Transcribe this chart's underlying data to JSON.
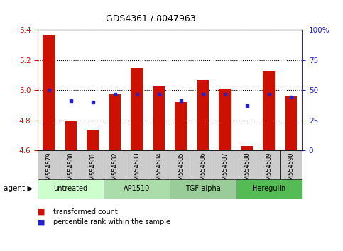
{
  "title": "GDS4361 / 8047963",
  "samples": [
    "GSM554579",
    "GSM554580",
    "GSM554581",
    "GSM554582",
    "GSM554583",
    "GSM554584",
    "GSM554585",
    "GSM554586",
    "GSM554587",
    "GSM554588",
    "GSM554589",
    "GSM554590"
  ],
  "bar_values": [
    5.365,
    4.8,
    4.74,
    4.98,
    5.15,
    5.03,
    4.92,
    5.07,
    5.01,
    4.63,
    5.13,
    4.96
  ],
  "percentile_values": [
    5.0,
    4.93,
    4.92,
    4.975,
    4.975,
    4.975,
    4.93,
    4.975,
    4.975,
    4.9,
    4.975,
    4.955
  ],
  "ymin": 4.6,
  "ymax": 5.4,
  "yticks": [
    4.6,
    4.8,
    5.0,
    5.2,
    5.4
  ],
  "right_yticks": [
    0,
    25,
    50,
    75,
    100
  ],
  "right_ytick_labels": [
    "0",
    "25",
    "50",
    "75",
    "100%"
  ],
  "bar_color": "#cc1100",
  "percentile_color": "#2222cc",
  "agent_groups": [
    {
      "label": "untreated",
      "start": 0,
      "end": 3,
      "color": "#ccffcc"
    },
    {
      "label": "AP1510",
      "start": 3,
      "end": 6,
      "color": "#aaddaa"
    },
    {
      "label": "TGF-alpha",
      "start": 6,
      "end": 9,
      "color": "#99cc99"
    },
    {
      "label": "Heregulin",
      "start": 9,
      "end": 12,
      "color": "#55bb55"
    }
  ],
  "legend_bar": "transformed count",
  "legend_pct": "percentile rank within the sample",
  "bg_color": "#ffffff",
  "tick_color_left": "#cc1100",
  "tick_color_right": "#2222cc",
  "sample_bg_color": "#cccccc",
  "plot_bg_color": "#ffffff"
}
